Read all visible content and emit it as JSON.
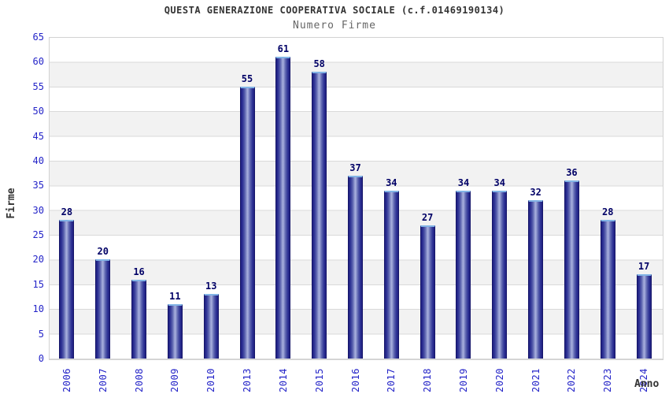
{
  "header": {
    "title": "QUESTA GENERAZIONE COOPERATIVA SOCIALE (c.f.01469190134)",
    "subtitle": "Numero Firme"
  },
  "chart_data": {
    "type": "bar",
    "title": "QUESTA GENERAZIONE COOPERATIVA SOCIALE (c.f.01469190134)",
    "subtitle": "Numero Firme",
    "categories": [
      "2006",
      "2007",
      "2008",
      "2009",
      "2010",
      "2013",
      "2014",
      "2015",
      "2016",
      "2017",
      "2018",
      "2019",
      "2020",
      "2021",
      "2022",
      "2023",
      "2024"
    ],
    "values": [
      28,
      20,
      16,
      11,
      13,
      55,
      61,
      58,
      37,
      34,
      27,
      34,
      34,
      32,
      36,
      28,
      17
    ],
    "xlabel": "Anno",
    "ylabel": "Firme",
    "ylim": [
      0,
      65
    ],
    "y_ticks": [
      0,
      5,
      10,
      15,
      20,
      25,
      30,
      35,
      40,
      45,
      50,
      55,
      60,
      65
    ],
    "grid": "horizontal gridlines every 5 units with alternating white/gray bands",
    "legend": "none",
    "colors": {
      "bar_edge": "#20207f",
      "bar_center": "#aab2de",
      "bar_cap": "#82b4e6",
      "bar_outline": "#15156a",
      "axis_tick_text": "#2424c8",
      "value_label_text": "#000066",
      "title_text": "#333333",
      "subtitle_text": "#666666",
      "band_gray": "#f2f2f2",
      "gridline": "#d9d9d9"
    }
  }
}
